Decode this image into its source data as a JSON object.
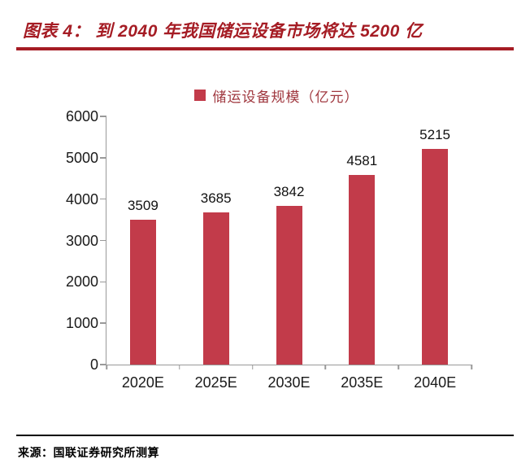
{
  "header": {
    "title": "图表 4： 到 2040 年我国储运设备市场将达 5200 亿"
  },
  "chart_data": {
    "type": "bar",
    "legend": "储运设备规模（亿元）",
    "categories": [
      "2020E",
      "2025E",
      "2030E",
      "2035E",
      "2040E"
    ],
    "values": [
      3509,
      3685,
      3842,
      4581,
      5215
    ],
    "ylim": [
      0,
      6000
    ],
    "yticks": [
      0,
      1000,
      2000,
      3000,
      4000,
      5000,
      6000
    ],
    "grid": false,
    "legend_position": "top",
    "bar_color": "#C23B4A",
    "title_color": "#A51C24",
    "legend_text_color": "#A0383F",
    "axis_color": "#999999"
  },
  "footer": {
    "source": "来源：国联证券研究所测算"
  }
}
